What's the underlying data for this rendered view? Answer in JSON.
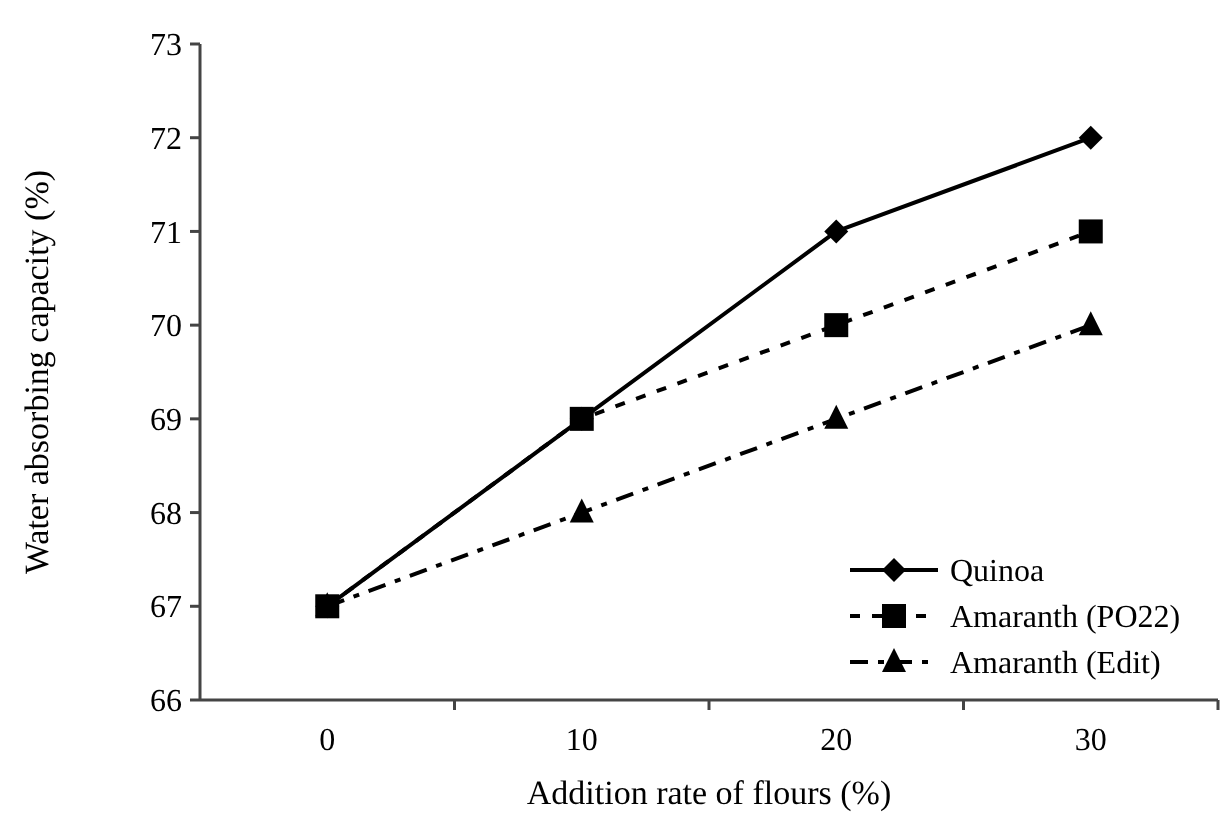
{
  "chart_data": {
    "type": "line",
    "xlabel": "Addition rate of flours (%)",
    "ylabel": "Water absorbing capacity (%)",
    "categories": [
      "0",
      "10",
      "20",
      "30"
    ],
    "series": [
      {
        "name": "Quinoa",
        "color": "#000000",
        "values": [
          67,
          69,
          71,
          72
        ],
        "marker": "diamond",
        "line_style": "solid"
      },
      {
        "name": "Amaranth (PO22)",
        "color": "#000000",
        "values": [
          67,
          69,
          70,
          71
        ],
        "marker": "square",
        "line_style": "dashed"
      },
      {
        "name": "Amaranth (Edit)",
        "color": "#000000",
        "values": [
          67,
          68,
          69,
          70
        ],
        "marker": "triangle",
        "line_style": "dashdot"
      }
    ],
    "ylim": [
      66,
      73
    ],
    "yticks": [
      66,
      67,
      68,
      69,
      70,
      71,
      72,
      73
    ],
    "grid": false,
    "legend": "bottom right"
  }
}
